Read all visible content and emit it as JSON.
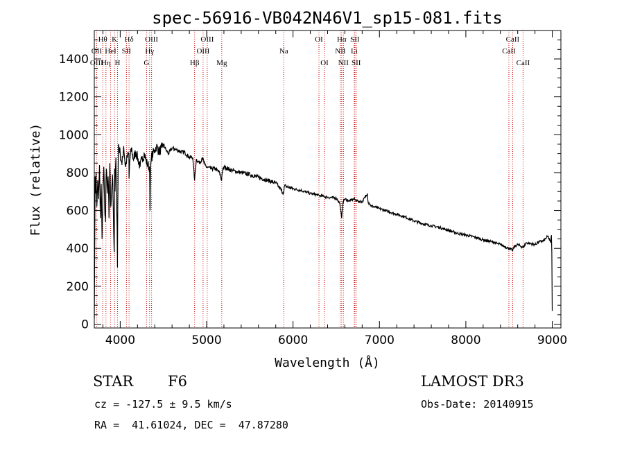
{
  "chart_data": {
    "type": "line",
    "title": "spec-56916-VB042N46V1_sp15-081.fits",
    "xlabel": "Wavelength (Å)",
    "ylabel": "Flux (relative)",
    "xlim": [
      3700,
      9100
    ],
    "ylim": [
      -20,
      1550
    ],
    "xticks": [
      4000,
      5000,
      6000,
      7000,
      8000,
      9000
    ],
    "yticks": [
      0,
      200,
      400,
      600,
      800,
      1000,
      1200,
      1400
    ],
    "grid": false,
    "series": [
      {
        "name": "spectrum",
        "x": [
          3700,
          3710,
          3715,
          3720,
          3730,
          3740,
          3750,
          3760,
          3770,
          3780,
          3790,
          3800,
          3810,
          3820,
          3830,
          3835,
          3840,
          3850,
          3860,
          3870,
          3880,
          3890,
          3900,
          3910,
          3920,
          3925,
          3930,
          3935,
          3940,
          3950,
          3960,
          3965,
          3968,
          3971,
          3980,
          4000,
          4020,
          4040,
          4060,
          4080,
          4100,
          4102,
          4110,
          4130,
          4150,
          4180,
          4200,
          4230,
          4250,
          4280,
          4300,
          4320,
          4340,
          4345,
          4350,
          4360,
          4380,
          4400,
          4420,
          4450,
          4480,
          4500,
          4530,
          4560,
          4600,
          4650,
          4700,
          4750,
          4800,
          4840,
          4861,
          4880,
          4900,
          4920,
          4950,
          4980,
          5000,
          5050,
          5100,
          5150,
          5173,
          5180,
          5200,
          5300,
          5400,
          5500,
          5600,
          5700,
          5800,
          5893,
          5900,
          6000,
          6100,
          6200,
          6300,
          6400,
          6500,
          6540,
          6563,
          6580,
          6600,
          6650,
          6700,
          6750,
          6800,
          6860,
          6870,
          6880,
          6900,
          7000,
          7100,
          7200,
          7300,
          7400,
          7500,
          7600,
          7700,
          7800,
          7900,
          8000,
          8100,
          8200,
          8300,
          8400,
          8498,
          8542,
          8560,
          8600,
          8662,
          8700,
          8800,
          8850,
          8900,
          8950,
          8980,
          8990,
          8995,
          9000
        ],
        "y": [
          30,
          780,
          690,
          800,
          620,
          760,
          660,
          840,
          560,
          740,
          450,
          700,
          830,
          620,
          540,
          760,
          820,
          690,
          780,
          560,
          850,
          620,
          700,
          790,
          610,
          480,
          380,
          820,
          700,
          880,
          600,
          500,
          300,
          600,
          950,
          900,
          840,
          940,
          830,
          880,
          900,
          770,
          860,
          930,
          870,
          910,
          880,
          830,
          870,
          900,
          860,
          840,
          830,
          600,
          790,
          880,
          900,
          920,
          940,
          910,
          930,
          950,
          920,
          900,
          930,
          920,
          910,
          905,
          880,
          880,
          760,
          870,
          860,
          850,
          880,
          840,
          830,
          820,
          820,
          800,
          760,
          800,
          830,
          810,
          800,
          790,
          775,
          760,
          745,
          690,
          730,
          715,
          705,
          690,
          680,
          670,
          665,
          640,
          560,
          650,
          660,
          650,
          660,
          650,
          645,
          690,
          640,
          640,
          625,
          610,
          595,
          580,
          565,
          545,
          530,
          520,
          510,
          495,
          480,
          470,
          460,
          445,
          435,
          420,
          400,
          390,
          410,
          420,
          405,
          430,
          420,
          435,
          440,
          465,
          430,
          470,
          380,
          70
        ]
      }
    ],
    "lines": [
      {
        "name": "Hθ",
        "wave": 3798,
        "row": 0
      },
      {
        "name": "OII",
        "wave": 3727,
        "row": 1
      },
      {
        "name": "OIII",
        "wave": 3727,
        "row": 2
      },
      {
        "name": "Hη",
        "wave": 3835,
        "row": 2
      },
      {
        "name": "K",
        "wave": 3934,
        "row": 0
      },
      {
        "name": "HeI",
        "wave": 3889,
        "row": 1
      },
      {
        "name": "H",
        "wave": 3969,
        "row": 2
      },
      {
        "name": "SII",
        "wave": 4072,
        "row": 1
      },
      {
        "name": "Hδ",
        "wave": 4102,
        "row": 0
      },
      {
        "name": "OIII",
        "wave": 4363,
        "row": 0
      },
      {
        "name": "Hγ",
        "wave": 4340,
        "row": 1
      },
      {
        "name": "G",
        "wave": 4305,
        "row": 2
      },
      {
        "name": "Hβ",
        "wave": 4861,
        "row": 2
      },
      {
        "name": "OIII",
        "wave": 5007,
        "row": 0
      },
      {
        "name": "OIII",
        "wave": 4959,
        "row": 1
      },
      {
        "name": "Mg",
        "wave": 5175,
        "row": 2
      },
      {
        "name": "Na",
        "wave": 5893,
        "row": 1
      },
      {
        "name": "OI",
        "wave": 6300,
        "row": 0
      },
      {
        "name": "OI",
        "wave": 6364,
        "row": 2
      },
      {
        "name": "Hα",
        "wave": 6563,
        "row": 0
      },
      {
        "name": "SII",
        "wave": 6716,
        "row": 0
      },
      {
        "name": "NII",
        "wave": 6548,
        "row": 1
      },
      {
        "name": "Li",
        "wave": 6708,
        "row": 1
      },
      {
        "name": "NII",
        "wave": 6583,
        "row": 2
      },
      {
        "name": "SII",
        "wave": 6731,
        "row": 2
      },
      {
        "name": "CaII",
        "wave": 8542,
        "row": 0
      },
      {
        "name": "CaII",
        "wave": 8498,
        "row": 1
      },
      {
        "name": "CaII",
        "wave": 8662,
        "row": 2
      }
    ]
  },
  "info": {
    "class_label": "STAR",
    "subclass": "F6",
    "survey": "LAMOST DR3",
    "redshift": "cz = -127.5 ± 9.5 km/s",
    "obs_date": "Obs-Date: 20140915",
    "coords": "RA =  41.61024, DEC =  47.87280"
  }
}
